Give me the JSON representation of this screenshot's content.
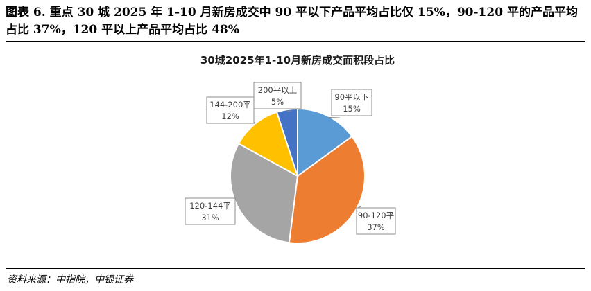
{
  "figure": {
    "caption": "图表 6. 重点 30 城 2025 年 1-10 月新房成交中 90 平以下产品平均占比仅 15%，90-120 平的产品平均占比 37%，120 平以上产品平均占比 48%",
    "source": "资料来源：中指院，中银证券"
  },
  "chart_data": {
    "type": "pie",
    "title": "30城2025年1-10月新房成交面积段占比",
    "unit": "%",
    "slices": [
      {
        "name": "90平以下",
        "value": 15,
        "label": "15%",
        "color": "#5B9BD5"
      },
      {
        "name": "90-120平",
        "value": 37,
        "label": "37%",
        "color": "#ED7D31"
      },
      {
        "name": "120-144平",
        "value": 31,
        "label": "31%",
        "color": "#A5A5A5"
      },
      {
        "name": "144-200平",
        "value": 12,
        "label": "12%",
        "color": "#FFC000"
      },
      {
        "name": "200平以上",
        "value": 5,
        "label": "5%",
        "color": "#4472C4"
      }
    ]
  }
}
